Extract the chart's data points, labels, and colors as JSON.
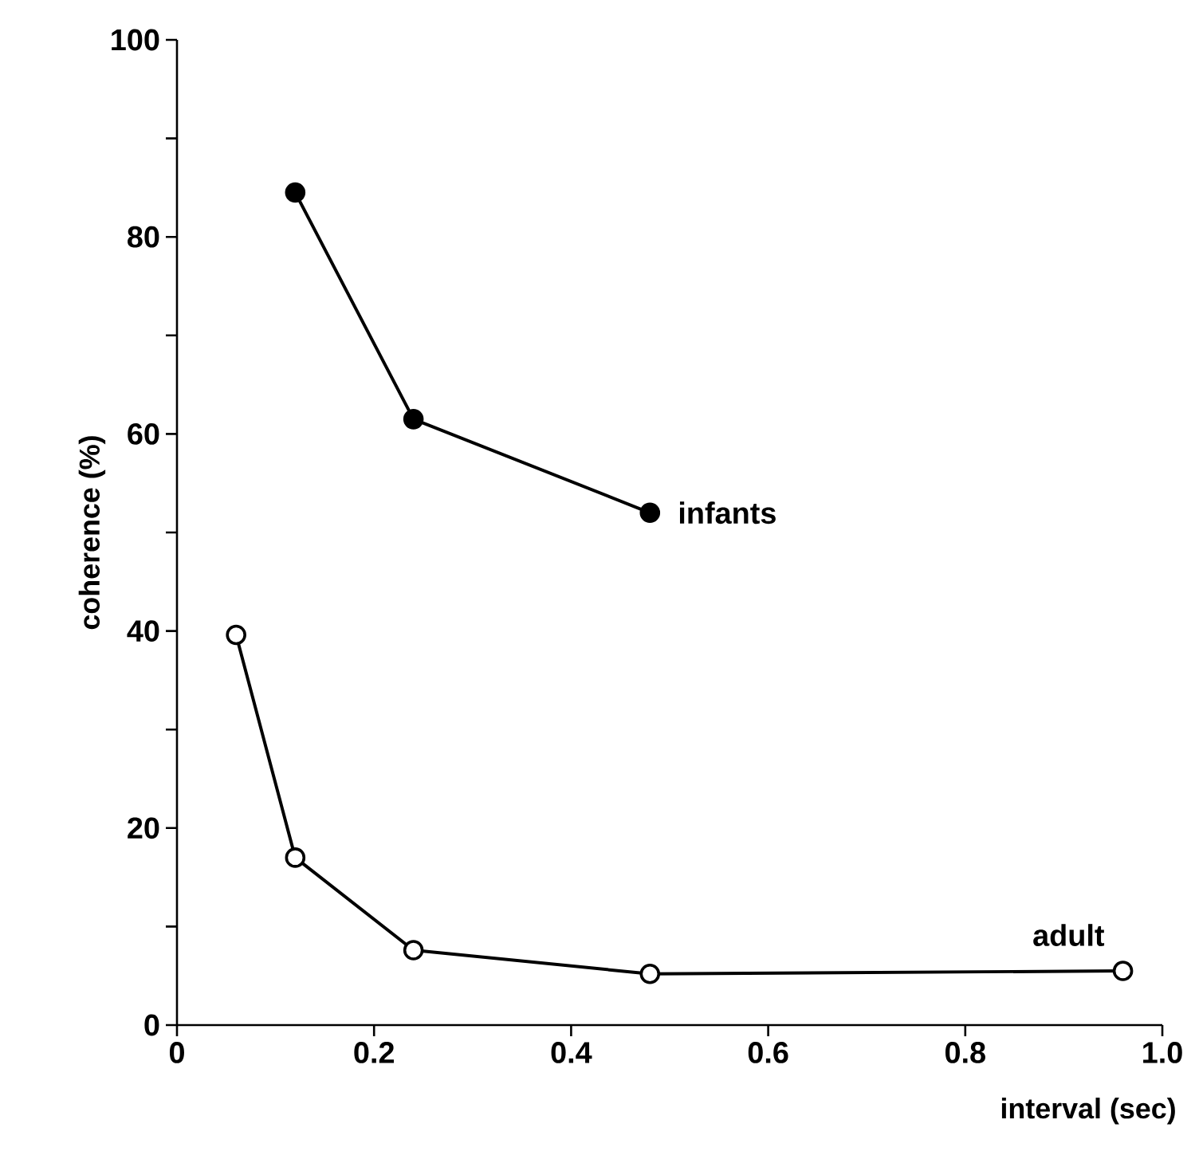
{
  "chart_data": {
    "type": "line",
    "xlabel": "interval (sec)",
    "ylabel": "coherence (%)",
    "xlim": [
      0,
      1.0
    ],
    "ylim": [
      0,
      100
    ],
    "xticks": [
      0,
      0.2,
      0.4,
      0.6,
      0.8,
      {
        "value": 1.0,
        "label": "1.0"
      }
    ],
    "yticks": [
      0,
      {
        "value": 10,
        "label": null
      },
      20,
      {
        "value": 30,
        "label": null
      },
      40,
      {
        "value": 50,
        "label": null
      },
      60,
      {
        "value": 70,
        "label": null
      },
      80,
      {
        "value": 90,
        "label": null
      },
      100
    ],
    "line_style": "solid",
    "series": [
      {
        "name": "infants",
        "color": "#000000",
        "marker": "circle",
        "x": [
          0.12,
          0.24,
          0.48
        ],
        "values": [
          84.5,
          61.5,
          52
        ]
      },
      {
        "name": "adult",
        "color": "#000000",
        "marker": "circle",
        "x": [
          0.06,
          0.12,
          0.24,
          0.48,
          0.96
        ],
        "values": [
          39.6,
          17,
          7.6,
          5.2,
          5.5
        ]
      }
    ]
  }
}
